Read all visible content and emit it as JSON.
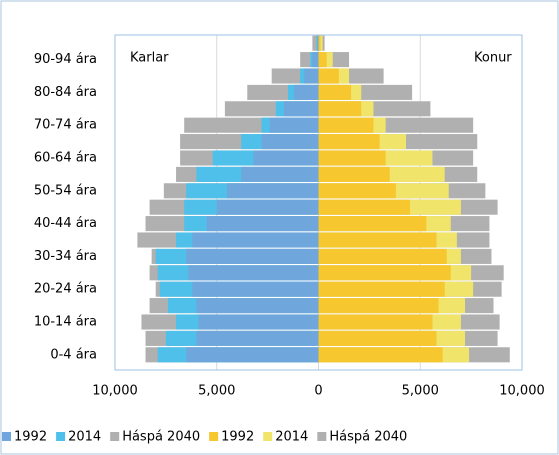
{
  "chart_data": {
    "type": "pyramid",
    "annotations": [
      "Karlar",
      "Konur"
    ],
    "categories": [
      "0-4 ára",
      null,
      "10-14 ára",
      null,
      "20-24 ára",
      null,
      "30-34 ára",
      null,
      "40-44 ára",
      null,
      "50-54 ára",
      null,
      "60-64 ára",
      null,
      "70-74 ára",
      null,
      "80-84 ára",
      null,
      "90-94 ára",
      null
    ],
    "series": [
      {
        "name": "1992",
        "color": "#6fa7dc",
        "values": [
          -6500,
          -6000,
          -5900,
          -6000,
          -6200,
          -6400,
          -6500,
          -6200,
          -5500,
          -5000,
          -4500,
          -3800,
          -3200,
          -2800,
          -2400,
          -1700,
          -1200,
          -700,
          -300,
          -50
        ]
      },
      {
        "name": "2014",
        "color": "#4fc0ea",
        "values": [
          -7900,
          -7500,
          -7000,
          -7400,
          -7800,
          -7900,
          -8000,
          -7000,
          -6600,
          -6600,
          -6500,
          -6000,
          -5200,
          -3800,
          -2800,
          -2100,
          -1500,
          -900,
          -400,
          -100
        ]
      },
      {
        "name": "Háspá 2040",
        "color": "#b0b0b0",
        "values": [
          -8500,
          -8500,
          -8700,
          -8300,
          -8000,
          -8300,
          -8200,
          -8900,
          -8500,
          -8300,
          -7600,
          -7000,
          -6800,
          -6800,
          -6600,
          -4600,
          -3500,
          -2300,
          -900,
          -300
        ]
      },
      {
        "name": "1992",
        "color": "#f6c72e",
        "values": [
          6100,
          5800,
          5600,
          5900,
          6200,
          6500,
          6300,
          5800,
          5300,
          4500,
          3800,
          3500,
          3300,
          3000,
          2700,
          2100,
          1600,
          1000,
          400,
          100
        ]
      },
      {
        "name": "2014",
        "color": "#f1e46a",
        "values": [
          7400,
          7200,
          7000,
          7200,
          7600,
          7500,
          7000,
          6800,
          6500,
          7000,
          6400,
          6200,
          5600,
          4300,
          3300,
          2700,
          2100,
          1500,
          700,
          200
        ]
      },
      {
        "name": "Háspá 2040",
        "color": "#b0b0b0",
        "values": [
          9400,
          8800,
          8900,
          8600,
          9000,
          9100,
          8500,
          8400,
          8400,
          8800,
          8200,
          7800,
          7600,
          7800,
          7600,
          5500,
          4600,
          3200,
          1500,
          300
        ]
      }
    ],
    "xlim": [
      -10000,
      10000
    ],
    "xticks": [
      {
        "value": -10000,
        "label": "10,000"
      },
      {
        "value": -5000,
        "label": "5,000"
      },
      0,
      {
        "value": 5000,
        "label": "5,000"
      },
      {
        "value": 10000,
        "label": "10,000"
      }
    ],
    "grid": true
  }
}
